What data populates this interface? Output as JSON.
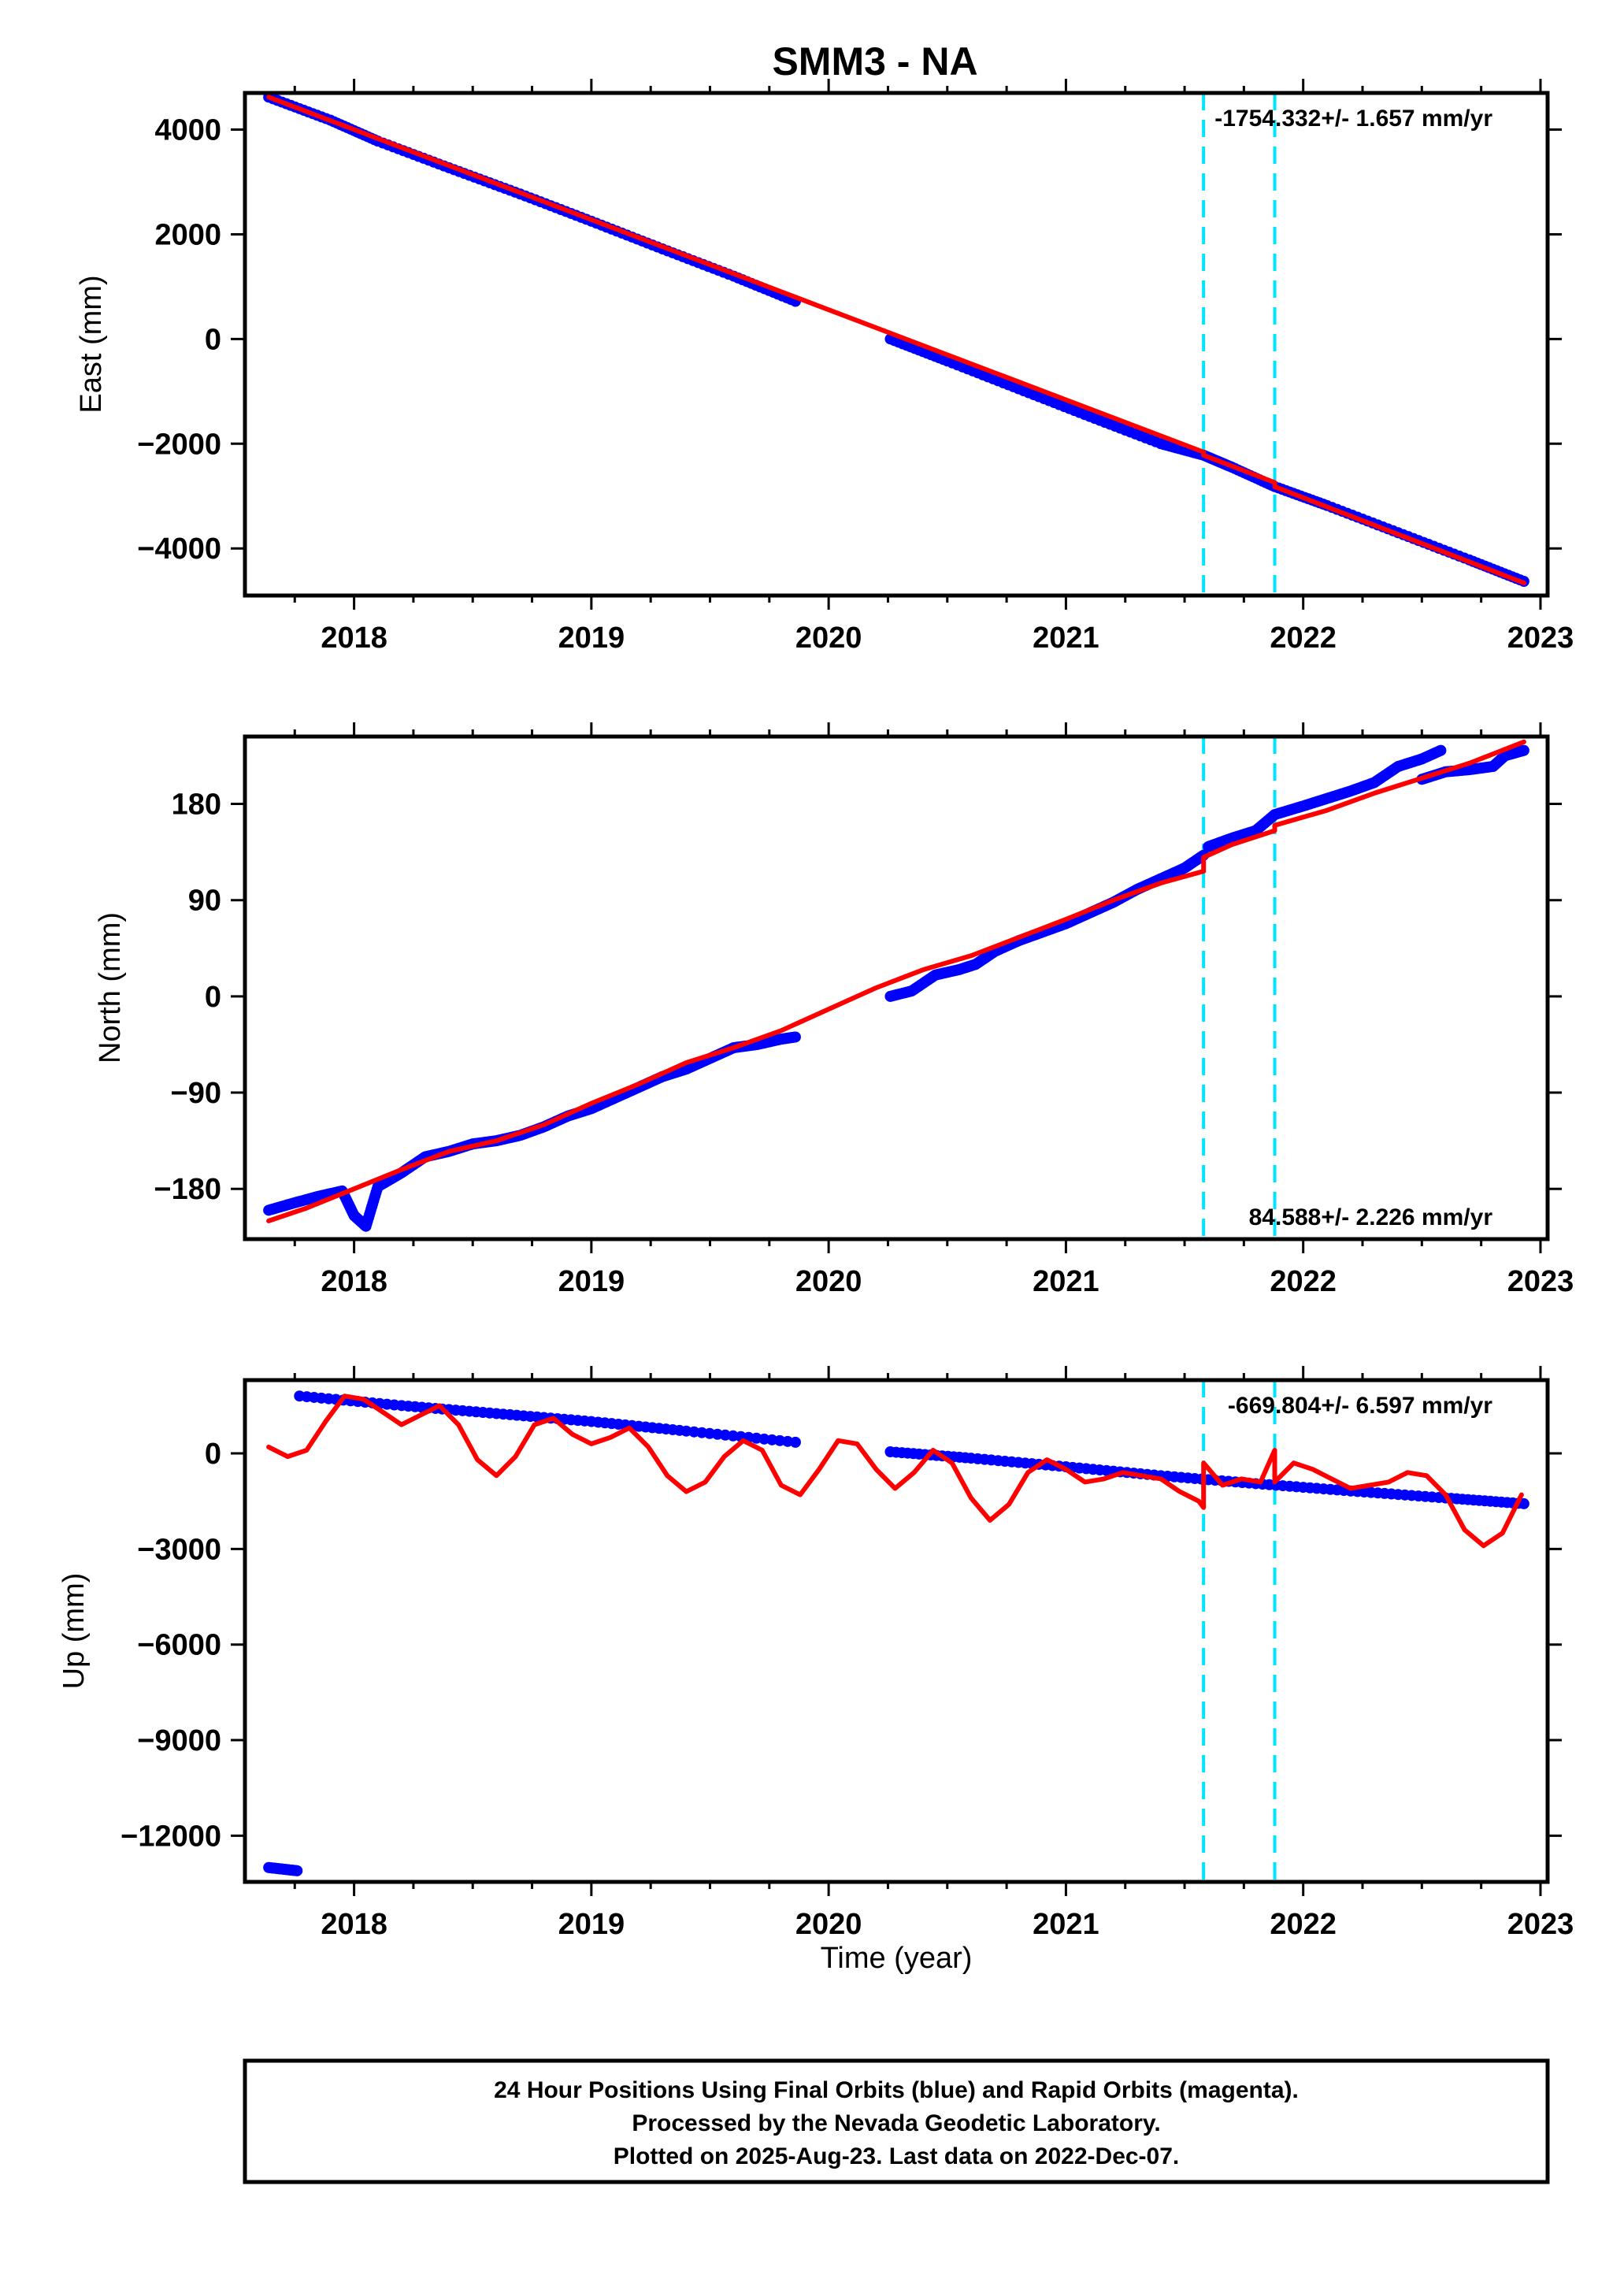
{
  "title": "SMM3 - NA",
  "xlabel": "Time (year)",
  "caption": [
    "24 Hour Positions Using Final Orbits (blue) and Rapid Orbits (magenta).",
    "Processed by the Nevada Geodetic Laboratory.",
    "Plotted on 2025-Aug-23. Last data on 2022-Dec-07."
  ],
  "colors": {
    "data": "#0000ff",
    "model": "#ff0000",
    "event_lines": "#00e5ff",
    "frame": "#000000"
  },
  "chart_data": [
    {
      "type": "scatter",
      "panel": "east",
      "ylabel": "East (mm)",
      "rate_text": "-1754.332+/- 1.657 mm/yr",
      "xlim": [
        2017.54,
        2023.03
      ],
      "ylim": [
        -4900,
        4700
      ],
      "x_ticks": [
        2018,
        2019,
        2020,
        2021,
        2022,
        2023
      ],
      "y_ticks": [
        4000,
        2000,
        0,
        -2000,
        -4000
      ],
      "y_tick_labels": [
        "4000",
        "2000",
        "0",
        "−2000",
        "−4000"
      ],
      "event_lines_x": [
        2021.58,
        2021.88
      ],
      "series": [
        {
          "role": "data",
          "segments": [
            {
              "x": [
                2017.64,
                2017.9,
                2018.1,
                2018.4,
                2018.7,
                2019.0,
                2019.3,
                2019.6,
                2019.86
              ],
              "y": [
                4620,
                4180,
                3780,
                3270,
                2770,
                2250,
                1720,
                1200,
                720
              ]
            },
            {
              "x": [
                2020.26,
                2020.5,
                2020.8,
                2021.1,
                2021.4,
                2021.58,
                2021.7,
                2021.88,
                2022.1,
                2022.4,
                2022.7,
                2022.93
              ],
              "y": [
                0,
                -420,
                -950,
                -1480,
                -2000,
                -2220,
                -2450,
                -2820,
                -3180,
                -3700,
                -4220,
                -4630
              ]
            }
          ]
        },
        {
          "role": "model",
          "segments": [
            {
              "x": [
                2017.64,
                2021.58,
                2021.58,
                2021.88,
                2021.88,
                2022.93
              ],
              "y": [
                4620,
                -2160,
                -2220,
                -2740,
                -2820,
                -4660
              ]
            }
          ]
        }
      ]
    },
    {
      "type": "scatter",
      "panel": "north",
      "ylabel": "North (mm)",
      "rate_text": "84.588+/- 2.226 mm/yr",
      "xlim": [
        2017.54,
        2023.03
      ],
      "ylim": [
        -227,
        243
      ],
      "x_ticks": [
        2018,
        2019,
        2020,
        2021,
        2022,
        2023
      ],
      "y_ticks": [
        180,
        90,
        0,
        -90,
        -180
      ],
      "y_tick_labels": [
        "180",
        "90",
        "0",
        "−90",
        "−180"
      ],
      "event_lines_x": [
        2021.58,
        2021.88
      ],
      "series": [
        {
          "role": "data",
          "segments": [
            {
              "x": [
                2017.64,
                2017.75,
                2017.85,
                2017.95,
                2018.0,
                2018.05,
                2018.1,
                2018.2,
                2018.3,
                2018.4,
                2018.5,
                2018.6,
                2018.7,
                2018.8,
                2018.9,
                2019.0,
                2019.1,
                2019.2,
                2019.3,
                2019.4,
                2019.5,
                2019.6,
                2019.7,
                2019.8,
                2019.86
              ],
              "y": [
                -200,
                -193,
                -187,
                -182,
                -205,
                -215,
                -178,
                -165,
                -150,
                -145,
                -138,
                -135,
                -130,
                -122,
                -112,
                -105,
                -95,
                -85,
                -75,
                -68,
                -58,
                -48,
                -45,
                -40,
                -38
              ]
            },
            {
              "x": [
                2020.26,
                2020.35,
                2020.45,
                2020.55,
                2020.62,
                2020.7,
                2020.8,
                2020.9,
                2021.0,
                2021.1,
                2021.2,
                2021.3,
                2021.4,
                2021.5,
                2021.58
              ],
              "y": [
                0,
                5,
                20,
                25,
                30,
                42,
                52,
                60,
                68,
                78,
                88,
                100,
                110,
                120,
                132
              ]
            },
            {
              "x": [
                2021.6,
                2021.7,
                2021.8,
                2021.88,
                2022.0,
                2022.1,
                2022.2,
                2022.3,
                2022.4,
                2022.5,
                2022.58
              ],
              "y": [
                140,
                148,
                155,
                170,
                178,
                185,
                192,
                200,
                215,
                222,
                230
              ]
            },
            {
              "x": [
                2022.5,
                2022.6,
                2022.7,
                2022.8,
                2022.85,
                2022.93
              ],
              "y": [
                203,
                210,
                212,
                215,
                225,
                230
              ]
            }
          ]
        },
        {
          "role": "model",
          "segments": [
            {
              "x": [
                2017.64,
                2017.8,
                2018.0,
                2018.2,
                2018.4,
                2018.6,
                2018.8,
                2019.0,
                2019.2,
                2019.4,
                2019.6,
                2019.8,
                2020.0,
                2020.2,
                2020.4,
                2020.6,
                2020.8,
                2021.0,
                2021.2,
                2021.4,
                2021.58,
                2021.58,
                2021.7,
                2021.88,
                2021.88,
                2022.1,
                2022.3,
                2022.5,
                2022.7,
                2022.93
              ],
              "y": [
                -210,
                -198,
                -180,
                -162,
                -145,
                -135,
                -120,
                -100,
                -82,
                -62,
                -48,
                -32,
                -12,
                8,
                25,
                38,
                55,
                72,
                90,
                106,
                117,
                130,
                142,
                155,
                160,
                174,
                190,
                204,
                218,
                238
              ]
            }
          ]
        }
      ]
    },
    {
      "type": "scatter",
      "panel": "up",
      "ylabel": "Up (mm)",
      "rate_text": "-669.804+/- 6.597 mm/yr",
      "xlim": [
        2017.54,
        2023.03
      ],
      "ylim": [
        -13450,
        2300
      ],
      "x_ticks": [
        2018,
        2019,
        2020,
        2021,
        2022,
        2023
      ],
      "y_ticks": [
        0,
        -3000,
        -6000,
        -9000,
        -12000
      ],
      "y_tick_labels": [
        "0",
        "−3000",
        "−6000",
        "−9000",
        "−12000"
      ],
      "event_lines_x": [
        2021.58,
        2021.88
      ],
      "series": [
        {
          "role": "data",
          "segments": [
            {
              "x": [
                2017.64,
                2017.7,
                2017.76
              ],
              "y": [
                -13000,
                -13050,
                -13100
              ]
            },
            {
              "x": [
                2017.77,
                2018.2,
                2018.6,
                2019.0,
                2019.4,
                2019.86
              ],
              "y": [
                1800,
                1500,
                1250,
                1000,
                700,
                350
              ]
            },
            {
              "x": [
                2020.26,
                2020.6,
                2021.0,
                2021.4,
                2021.8,
                2022.2,
                2022.6,
                2022.93
              ],
              "y": [
                50,
                -150,
                -420,
                -700,
                -950,
                -1180,
                -1400,
                -1580
              ]
            }
          ]
        },
        {
          "role": "model",
          "segments": [
            {
              "x": [
                2017.64,
                2017.72,
                2017.8,
                2017.88,
                2017.96,
                2018.04,
                2018.12,
                2018.2,
                2018.28,
                2018.36,
                2018.44,
                2018.52,
                2018.6,
                2018.68,
                2018.76,
                2018.84,
                2018.92,
                2019.0,
                2019.08,
                2019.16,
                2019.24,
                2019.32,
                2019.4,
                2019.48,
                2019.56,
                2019.64,
                2019.72,
                2019.8,
                2019.88,
                2019.96,
                2020.04,
                2020.12,
                2020.2,
                2020.28,
                2020.36,
                2020.44,
                2020.52,
                2020.6,
                2020.68,
                2020.76,
                2020.84,
                2020.92,
                2021.0,
                2021.08,
                2021.16,
                2021.24,
                2021.32,
                2021.4,
                2021.48,
                2021.56,
                2021.58,
                2021.58,
                2021.66,
                2021.74,
                2021.82,
                2021.88,
                2021.88,
                2021.96,
                2022.04,
                2022.12,
                2022.2,
                2022.28,
                2022.36,
                2022.44,
                2022.52,
                2022.6,
                2022.68,
                2022.76,
                2022.84,
                2022.92
              ],
              "y": [
                200,
                -100,
                100,
                1000,
                1800,
                1700,
                1300,
                900,
                1200,
                1500,
                900,
                -200,
                -700,
                -100,
                900,
                1100,
                600,
                300,
                500,
                800,
                200,
                -700,
                -1200,
                -900,
                -100,
                400,
                100,
                -1000,
                -1300,
                -500,
                400,
                300,
                -500,
                -1100,
                -600,
                100,
                -300,
                -1400,
                -2100,
                -1600,
                -600,
                -200,
                -500,
                -900,
                -800,
                -600,
                -700,
                -800,
                -1200,
                -1500,
                -1700,
                -300,
                -1000,
                -800,
                -900,
                100,
                -900,
                -300,
                -500,
                -800,
                -1100,
                -1000,
                -900,
                -600,
                -700,
                -1300,
                -2400,
                -2900,
                -2500,
                -1300
              ]
            }
          ]
        }
      ]
    }
  ]
}
